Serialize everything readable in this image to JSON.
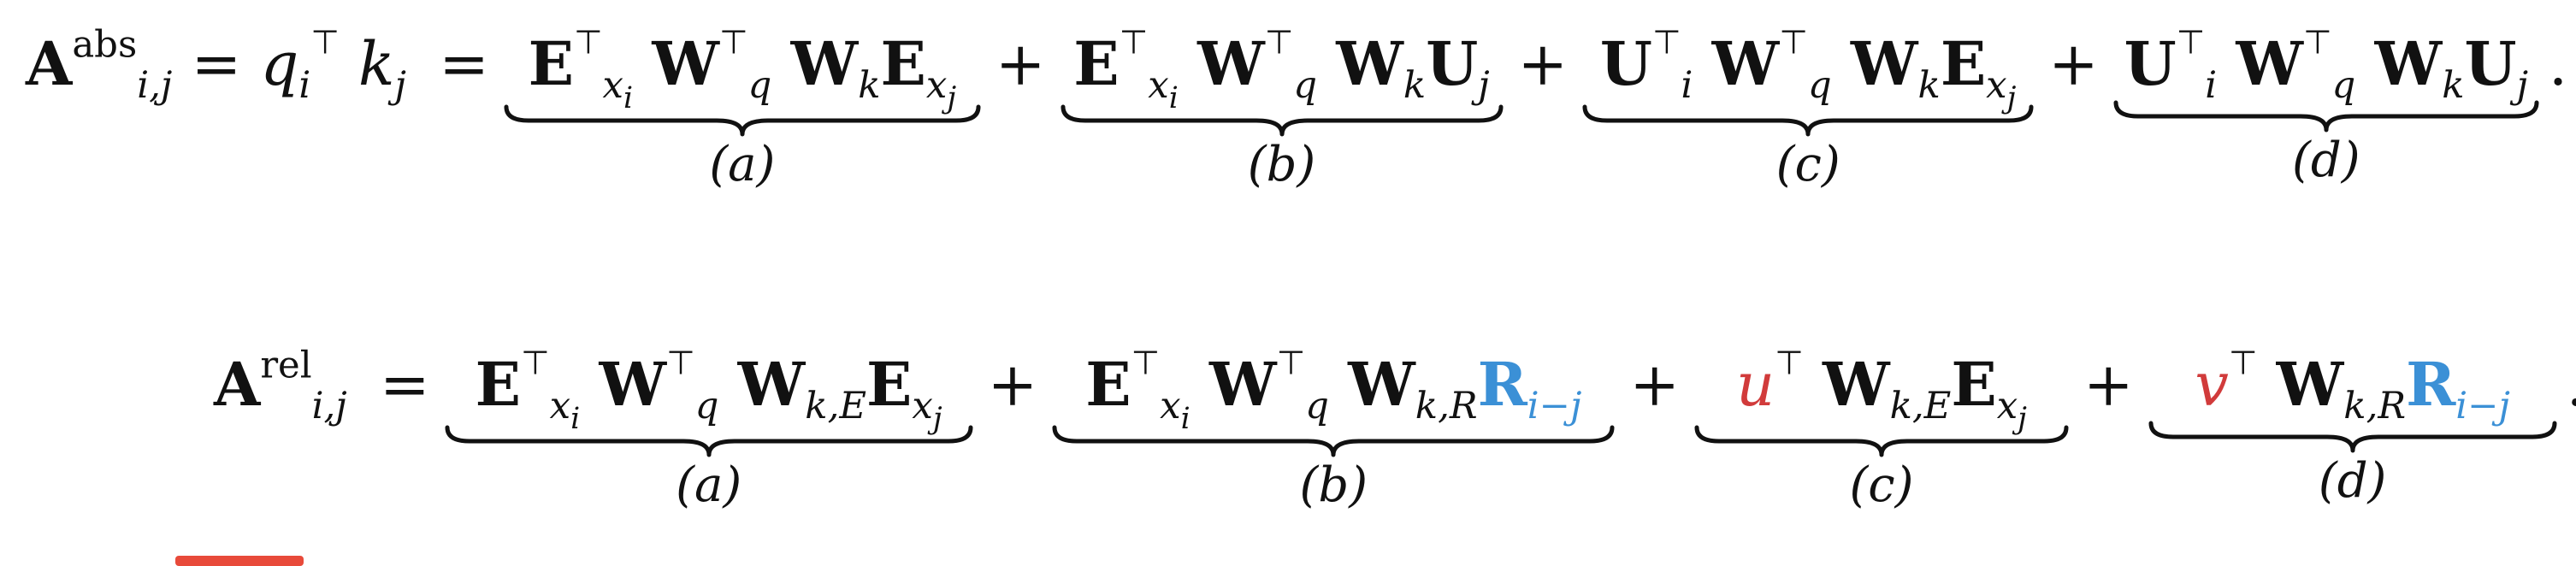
{
  "eq1": {
    "lhs_sym": "A",
    "lhs_sup": "abs",
    "lhs_sub": "i,j",
    "eq_mid": "= q",
    "q_sub": "i",
    "k": "k",
    "k_sub": "j",
    "eq_sign": "=",
    "labels": [
      "(a)",
      "(b)",
      "(c)",
      "(d)"
    ],
    "plus": "+",
    "end": "."
  },
  "eq2": {
    "lhs_sym": "A",
    "lhs_sup": "rel",
    "lhs_sub": "i,j",
    "eq_sign": "=",
    "u": "u",
    "v": "v",
    "R": "R",
    "R_sub": "i−j",
    "labels": [
      "(a)",
      "(b)",
      "(c)",
      "(d)"
    ],
    "plus": "+",
    "end": "."
  },
  "colors": {
    "relative_pos": "#3b90d6",
    "bias": "#d13b3b",
    "mark": "#e84a3a"
  }
}
